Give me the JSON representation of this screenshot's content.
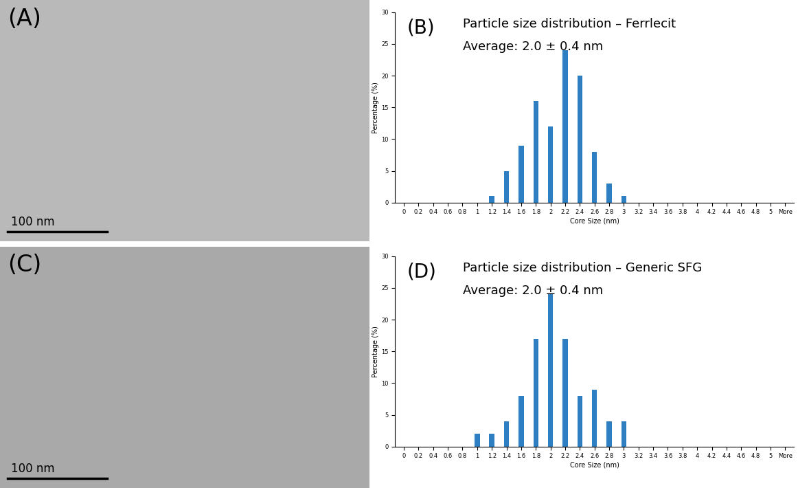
{
  "images": [
    {
      "label": "(A)",
      "scale_bar": "100 nm"
    },
    {
      "label": "(C)",
      "scale_bar": "100 nm"
    }
  ],
  "chart_data": [
    {
      "type": "bar",
      "annotations": [
        "(B)"
      ],
      "title": "Particle size distribution – Ferrlecit",
      "subtitle": "Average: 2.0 ± 0.4 nm",
      "x_label": "Core Size (nm)",
      "y_label": "Percentage (%)",
      "categories": [
        "0",
        "0.2",
        "0.4",
        "0.6",
        "0.8",
        "1",
        "1.2",
        "1.4",
        "1.6",
        "1.8",
        "2",
        "2.2",
        "2.4",
        "2.6",
        "2.8",
        "3",
        "3.2",
        "3.4",
        "3.6",
        "3.8",
        "4",
        "4.2",
        "4.4",
        "4.6",
        "4.8",
        "5",
        "More"
      ],
      "values": [
        0,
        0,
        0,
        0,
        0,
        0,
        1,
        5,
        9,
        16,
        12,
        24,
        20,
        8,
        3,
        1,
        0,
        0,
        0,
        0,
        0,
        0,
        0,
        0,
        0,
        0,
        0
      ],
      "color": "#2e7fc2",
      "ylim": [
        0,
        30
      ],
      "yticks": [
        0,
        5,
        10,
        15,
        20,
        25,
        30
      ]
    },
    {
      "type": "bar",
      "annotations": [
        "(D)"
      ],
      "title": "Particle size distribution – Generic SFG",
      "subtitle": "Average: 2.0 ± 0.4 nm",
      "x_label": "Core Size (nm)",
      "y_label": "Percentage (%)",
      "categories": [
        "0",
        "0.2",
        "0.4",
        "0.6",
        "0.8",
        "1",
        "1.2",
        "1.4",
        "1.6",
        "1.8",
        "2",
        "2.2",
        "2.4",
        "2.6",
        "2.8",
        "3",
        "3.2",
        "3.4",
        "3.6",
        "3.8",
        "4",
        "4.2",
        "4.4",
        "4.6",
        "4.8",
        "5",
        "More"
      ],
      "values": [
        0,
        0,
        0,
        0,
        0,
        2,
        2,
        4,
        8,
        17,
        24,
        17,
        8,
        9,
        4,
        4,
        0,
        0,
        0,
        0,
        0,
        0,
        0,
        0,
        0,
        0,
        0
      ],
      "color": "#2e7fc2",
      "ylim": [
        0,
        30
      ],
      "yticks": [
        0,
        5,
        10,
        15,
        20,
        25,
        30
      ]
    }
  ]
}
